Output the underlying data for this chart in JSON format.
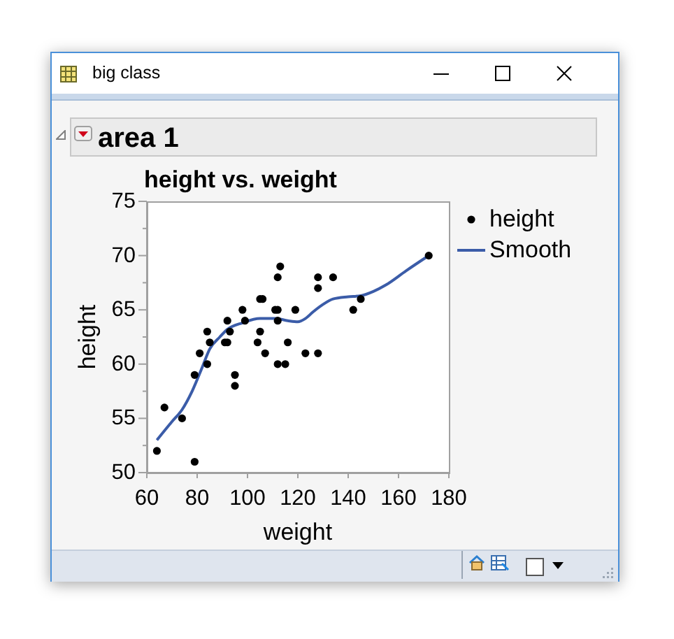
{
  "chart_data": {
    "type": "scatter",
    "title": "height vs. weight",
    "xlabel": "weight",
    "ylabel": "height",
    "annotations": [
      "big class",
      "area 1"
    ],
    "series": [
      {
        "name": "height",
        "color": "#000000",
        "x": [
          64,
          67,
          74,
          79,
          79,
          81,
          84,
          84,
          85,
          91,
          92,
          92,
          93,
          95,
          95,
          98,
          99,
          104,
          105,
          105,
          106,
          107,
          111,
          112,
          112,
          112,
          113,
          112,
          115,
          116,
          119,
          123,
          128,
          128,
          128,
          134,
          142,
          145,
          172
        ],
        "values": [
          52,
          56,
          55,
          59,
          51,
          61,
          60,
          63,
          62,
          62,
          62,
          64,
          63,
          59,
          58,
          65,
          64,
          62,
          63,
          66,
          66,
          61,
          65,
          65,
          64,
          68,
          69,
          60,
          60,
          62,
          65,
          61,
          61,
          67,
          68,
          68,
          65,
          66,
          70
        ]
      },
      {
        "name": "Smooth",
        "type": "line",
        "color": "#3b5ca8",
        "x": [
          64,
          70,
          74,
          78,
          82,
          85,
          89,
          92,
          98,
          105,
          111,
          116,
          120,
          123,
          126,
          130,
          134,
          140,
          145,
          150,
          155,
          163,
          172
        ],
        "values": [
          53.0,
          54.7,
          55.8,
          57.5,
          59.7,
          61.4,
          62.5,
          63.2,
          63.8,
          64.2,
          64.2,
          64.0,
          63.9,
          64.2,
          64.8,
          65.5,
          66.0,
          66.2,
          66.3,
          66.7,
          67.3,
          68.6,
          70.0
        ]
      }
    ],
    "xlim": [
      60,
      180
    ],
    "xticks": [
      60,
      80,
      100,
      120,
      140,
      160,
      180
    ],
    "ylim": [
      50,
      75
    ],
    "yticks": [
      50,
      {
        "value": 52.5,
        "label": null
      },
      55,
      {
        "value": 57.5,
        "label": null
      },
      60,
      {
        "value": 62.5,
        "label": null
      },
      65,
      {
        "value": 67.5,
        "label": null
      },
      70,
      {
        "value": 72.5,
        "label": null
      },
      75
    ],
    "legend": "top right"
  }
}
